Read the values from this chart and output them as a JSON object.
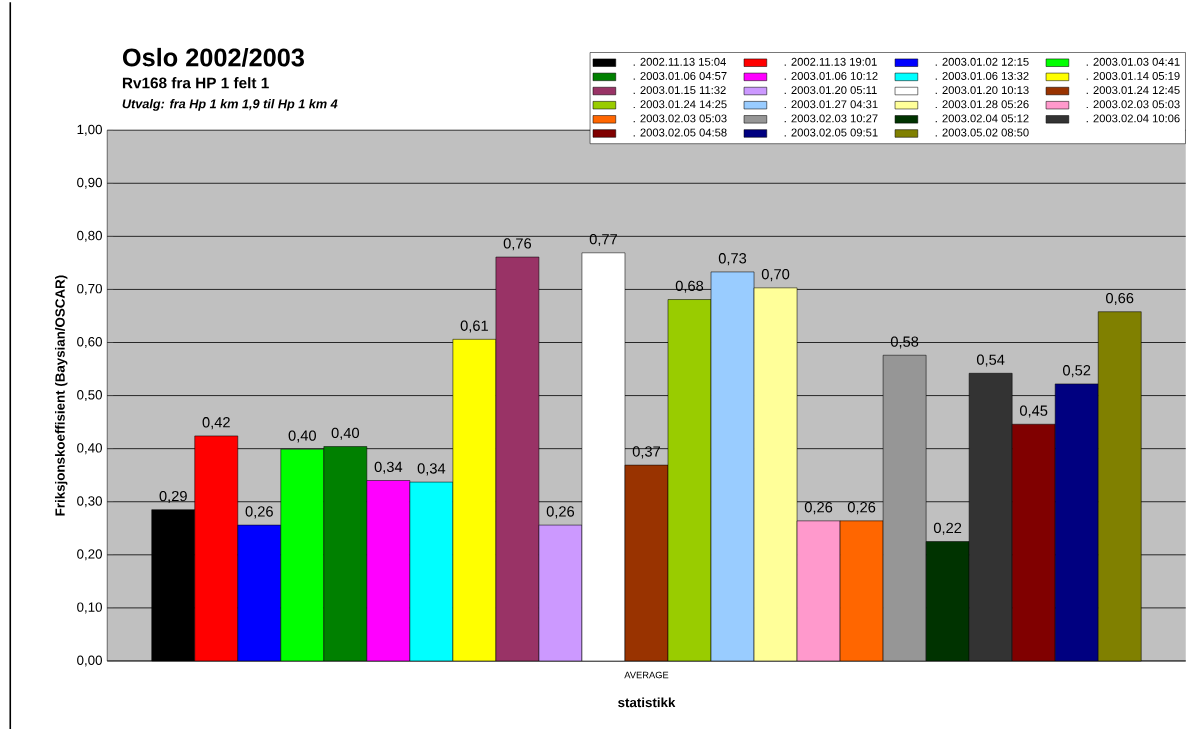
{
  "chart_data": {
    "type": "bar",
    "title": "Oslo 2002/2003",
    "subtitle": "Rv168 fra HP 1 felt 1",
    "annotations": [
      "Utvalg: fra Hp 1 km 1,9 til Hp 1 km 4"
    ],
    "xlabel": "statistikk",
    "ylabel": "Friksjonskoeffisient (Baysian/OSCAR)",
    "categories": [
      "AVERAGE"
    ],
    "ylim": [
      0,
      1
    ],
    "yticks": [
      {
        "value": 0,
        "label": "0,00"
      },
      {
        "value": 0.1,
        "label": "0,10"
      },
      {
        "value": 0.2,
        "label": "0,20"
      },
      {
        "value": 0.3,
        "label": "0,30"
      },
      {
        "value": 0.4,
        "label": "0,40"
      },
      {
        "value": 0.5,
        "label": "0,50"
      },
      {
        "value": 0.6,
        "label": "0,60"
      },
      {
        "value": 0.7,
        "label": "0,70"
      },
      {
        "value": 0.8,
        "label": "0,80"
      },
      {
        "value": 0.9,
        "label": "0,90"
      },
      {
        "value": 1,
        "label": "1,00"
      }
    ],
    "grid": "y",
    "legend": "top right",
    "series": [
      {
        "name": ". 2002.11.13 15:04",
        "color": "#000000",
        "values": [
          0.285
        ],
        "value_labels": [
          "0,29"
        ]
      },
      {
        "name": ". 2002.11.13 19:01",
        "color": "#ff0000",
        "values": [
          0.424
        ],
        "value_labels": [
          "0,42"
        ]
      },
      {
        "name": ". 2003.01.02 12:15",
        "color": "#0000ff",
        "values": [
          0.256
        ],
        "value_labels": [
          "0,26"
        ]
      },
      {
        "name": ". 2003.01.03 04:41",
        "color": "#00ff00",
        "values": [
          0.399
        ],
        "value_labels": [
          "0,40"
        ]
      },
      {
        "name": ". 2003.01.06 04:57",
        "color": "#008000",
        "values": [
          0.404
        ],
        "value_labels": [
          "0,40"
        ]
      },
      {
        "name": ". 2003.01.06 10:12",
        "color": "#ff00ff",
        "values": [
          0.34
        ],
        "value_labels": [
          "0,34"
        ]
      },
      {
        "name": ". 2003.01.06 13:32",
        "color": "#00ffff",
        "values": [
          0.337
        ],
        "value_labels": [
          "0,34"
        ]
      },
      {
        "name": ". 2003.01.14 05:19",
        "color": "#ffff00",
        "values": [
          0.606
        ],
        "value_labels": [
          "0,61"
        ]
      },
      {
        "name": ". 2003.01.15 11:32",
        "color": "#993366",
        "values": [
          0.761
        ],
        "value_labels": [
          "0,76"
        ]
      },
      {
        "name": ". 2003.01.20 05:11",
        "color": "#cc99ff",
        "values": [
          0.256
        ],
        "value_labels": [
          "0,26"
        ]
      },
      {
        "name": ". 2003.01.20 10:13",
        "color": "#ffffff",
        "values": [
          0.769
        ],
        "value_labels": [
          "0,77"
        ]
      },
      {
        "name": ". 2003.01.24 12:45",
        "color": "#993300",
        "values": [
          0.369
        ],
        "value_labels": [
          "0,37"
        ]
      },
      {
        "name": ". 2003.01.24 14:25",
        "color": "#99cc00",
        "values": [
          0.681
        ],
        "value_labels": [
          "0,68"
        ]
      },
      {
        "name": ". 2003.01.27 04:31",
        "color": "#99ccff",
        "values": [
          0.733
        ],
        "value_labels": [
          "0,73"
        ]
      },
      {
        "name": ". 2003.01.28 05:26",
        "color": "#ffff99",
        "values": [
          0.703
        ],
        "value_labels": [
          "0,70"
        ]
      },
      {
        "name": ". 2003.02.03 05:03",
        "color": "#ff99cc",
        "values": [
          0.264
        ],
        "value_labels": [
          "0,26"
        ]
      },
      {
        "name": ". 2003.02.03 05:03",
        "color": "#ff6600",
        "values": [
          0.264
        ],
        "value_labels": [
          "0,26"
        ]
      },
      {
        "name": ". 2003.02.03 10:27",
        "color": "#969696",
        "values": [
          0.576
        ],
        "value_labels": [
          "0,58"
        ]
      },
      {
        "name": ". 2003.02.04 05:12",
        "color": "#003300",
        "values": [
          0.225
        ],
        "value_labels": [
          "0,22"
        ]
      },
      {
        "name": ". 2003.02.04 10:06",
        "color": "#333333",
        "values": [
          0.542
        ],
        "value_labels": [
          "0,54"
        ]
      },
      {
        "name": ". 2003.02.05 04:58",
        "color": "#800000",
        "values": [
          0.446
        ],
        "value_labels": [
          "0,45"
        ]
      },
      {
        "name": ". 2003.02.05 09:51",
        "color": "#000080",
        "values": [
          0.522
        ],
        "value_labels": [
          "0,52"
        ]
      },
      {
        "name": ". 2003.05.02 08:50",
        "color": "#808000",
        "values": [
          0.658
        ],
        "value_labels": [
          "0,66"
        ]
      }
    ]
  }
}
